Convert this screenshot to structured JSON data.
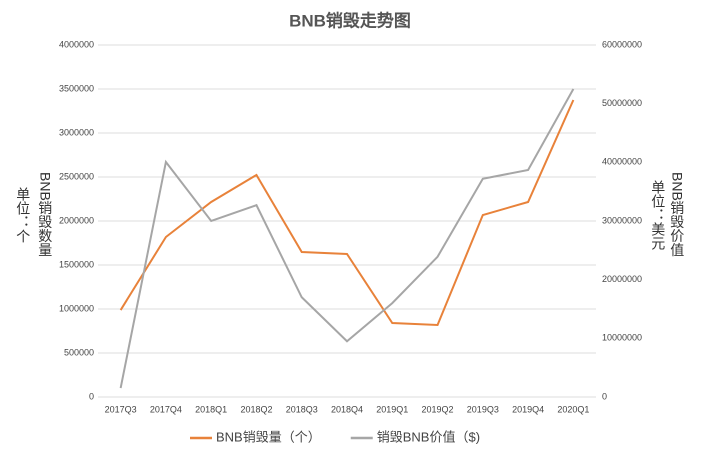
{
  "chart_data": {
    "type": "line",
    "title": "BNB销毁走势图",
    "y_label": "BNB销毁数量",
    "y_unit": "单位：个",
    "y2_label": "BNB销毁价值",
    "y2_unit": "单位：美元",
    "categories": [
      "2017Q3",
      "2017Q4",
      "2018Q1",
      "2018Q2",
      "2018Q3",
      "2018Q4",
      "2019Q1",
      "2019Q2",
      "2019Q3",
      "2019Q4",
      "2020Q1"
    ],
    "series": [
      {
        "name": "BNB销毁量（个）",
        "color": "#e8823a",
        "values": [
          988000,
          1818000,
          2216000,
          2523000,
          1648000,
          1625000,
          841000,
          818000,
          2068000,
          2216000,
          3375000
        ]
      },
      {
        "name": "销毁BNB价值（$)",
        "color": "#a6a6a6",
        "axis": "y2",
        "values": [
          1530000,
          40060000,
          30000000,
          32700000,
          17000000,
          9500000,
          16000000,
          23900000,
          37200000,
          38700000,
          52500000
        ]
      }
    ],
    "ylim": [
      0,
      4000000
    ],
    "yticks": [
      0,
      500000,
      1000000,
      1500000,
      2000000,
      2500000,
      3000000,
      3500000,
      4000000
    ],
    "y2lim": [
      0,
      60000000
    ],
    "y2ticks": [
      0,
      10000000,
      20000000,
      30000000,
      40000000,
      50000000,
      60000000
    ],
    "grid": true
  }
}
